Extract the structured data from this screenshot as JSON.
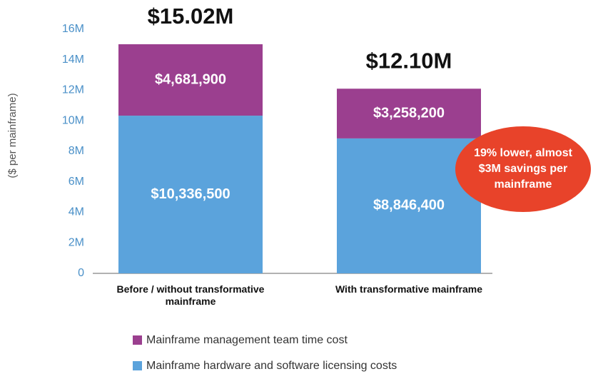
{
  "chart_data": {
    "type": "stacked_bar",
    "y_label": "($ per mainframe)",
    "categories": [
      "Before / without transformative mainframe",
      "With transformative mainframe"
    ],
    "series": [
      {
        "name": "Mainframe hardware and software licensing costs",
        "color": "#5ba3dc",
        "values": [
          10336500,
          8846400
        ],
        "value_labels": [
          "$10,336,500",
          "$8,846,400"
        ]
      },
      {
        "name": "Mainframe management team time cost",
        "color": "#9b3f8f",
        "values": [
          4681900,
          3258200
        ],
        "value_labels": [
          "$4,681,900",
          "$3,258,200"
        ]
      }
    ],
    "total_labels": [
      "$15.02M",
      "$12.10M"
    ],
    "annotation": "19% lower, almost $3M savings per mainframe",
    "annotation_color": "#e8432a",
    "ylim": [
      0,
      16000000
    ],
    "yticks": [
      0,
      {
        "value": 2000000,
        "label": "2M"
      },
      {
        "value": 4000000,
        "label": "4M"
      },
      {
        "value": 6000000,
        "label": "6M"
      },
      {
        "value": 8000000,
        "label": "8M"
      },
      {
        "value": 10000000,
        "label": "10M"
      },
      {
        "value": 12000000,
        "label": "12M"
      },
      {
        "value": 14000000,
        "label": "14M"
      },
      {
        "value": 16000000,
        "label": "16M"
      }
    ],
    "grid": false
  }
}
